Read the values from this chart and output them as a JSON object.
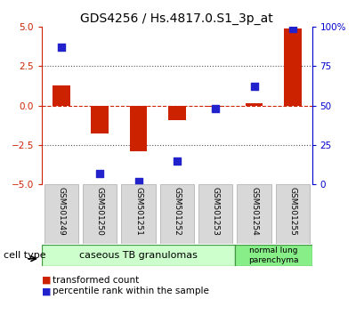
{
  "title": "GDS4256 / Hs.4817.0.S1_3p_at",
  "samples": [
    "GSM501249",
    "GSM501250",
    "GSM501251",
    "GSM501252",
    "GSM501253",
    "GSM501254",
    "GSM501255"
  ],
  "transformed_count": [
    1.3,
    -1.8,
    -2.9,
    -0.9,
    -0.1,
    0.15,
    4.9
  ],
  "percentile_rank": [
    87,
    7,
    2,
    15,
    48,
    62,
    99
  ],
  "ylim_left": [
    -5,
    5
  ],
  "ylim_right": [
    0,
    100
  ],
  "yticks_left": [
    -5,
    -2.5,
    0,
    2.5,
    5
  ],
  "yticks_right": [
    0,
    25,
    50,
    75,
    100
  ],
  "ytick_labels_right": [
    "0",
    "25",
    "50",
    "75",
    "100%"
  ],
  "bar_color": "#cc2200",
  "dot_color": "#2222cc",
  "hline_color": "#cc2200",
  "dotted_color": "#555555",
  "group1_label": "caseous TB granulomas",
  "group2_label": "normal lung\nparenchyma",
  "group1_color": "#ccffcc",
  "group2_color": "#88ee88",
  "cell_type_label": "cell type",
  "legend_bar_label": "transformed count",
  "legend_dot_label": "percentile rank within the sample",
  "bar_width": 0.45,
  "dot_size": 30,
  "title_fontsize": 10,
  "tick_fontsize": 7.5,
  "label_fontsize": 7.5,
  "axis_color_left": "#cc2200",
  "axis_color_right": "#0000cc",
  "sample_box_color": "#d8d8d8",
  "sample_box_edge": "#aaaaaa"
}
